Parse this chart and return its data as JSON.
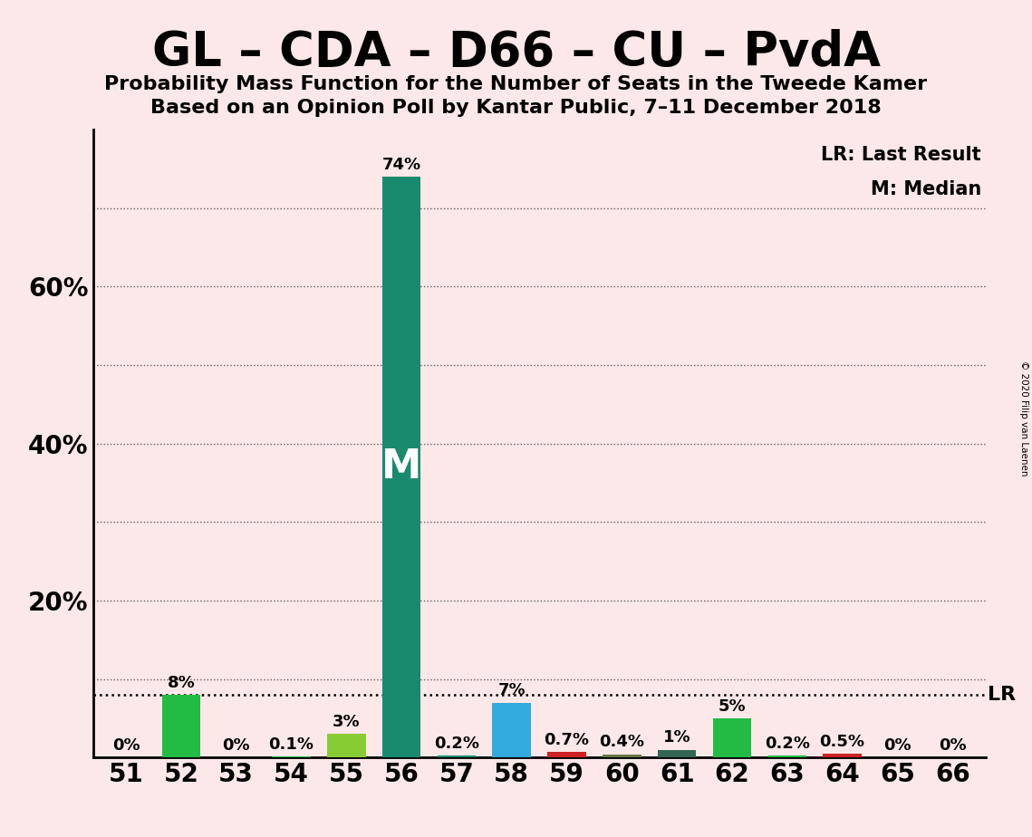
{
  "title": "GL – CDA – D66 – CU – PvdA",
  "subtitle1": "Probability Mass Function for the Number of Seats in the Tweede Kamer",
  "subtitle2": "Based on an Opinion Poll by Kantar Public, 7–11 December 2018",
  "copyright": "© 2020 Filip van Laenen",
  "seats": [
    51,
    52,
    53,
    54,
    55,
    56,
    57,
    58,
    59,
    60,
    61,
    62,
    63,
    64,
    65,
    66
  ],
  "probabilities": [
    0.0,
    8.0,
    0.0,
    0.1,
    3.0,
    74.0,
    0.2,
    7.0,
    0.7,
    0.4,
    1.0,
    5.0,
    0.2,
    0.5,
    0.0,
    0.0
  ],
  "bar_colors": {
    "51": "#22bb44",
    "52": "#22bb44",
    "53": "#22bb44",
    "54": "#22bb44",
    "55": "#88cc33",
    "56": "#1a8a6e",
    "57": "#1a8a6e",
    "58": "#33aadd",
    "59": "#cc2222",
    "60": "#667744",
    "61": "#336655",
    "62": "#22bb44",
    "63": "#22bb44",
    "64": "#cc2222",
    "65": "#22bb44",
    "66": "#22bb44"
  },
  "median_seat": 56,
  "lr_value": 8.0,
  "background_color": "#fce8e8",
  "legend_lr": "LR: Last Result",
  "legend_m": "M: Median",
  "bar_label_fontsize": 13,
  "axis_tick_fontsize": 20,
  "title_fontsize": 38,
  "subtitle_fontsize": 16,
  "ytick_positions": [
    0,
    20,
    40,
    60
  ],
  "ytick_labels": [
    "",
    "20%",
    "40%",
    "60%"
  ],
  "dotted_lines": [
    10,
    20,
    30,
    40,
    50,
    60,
    70
  ],
  "ymax": 80
}
